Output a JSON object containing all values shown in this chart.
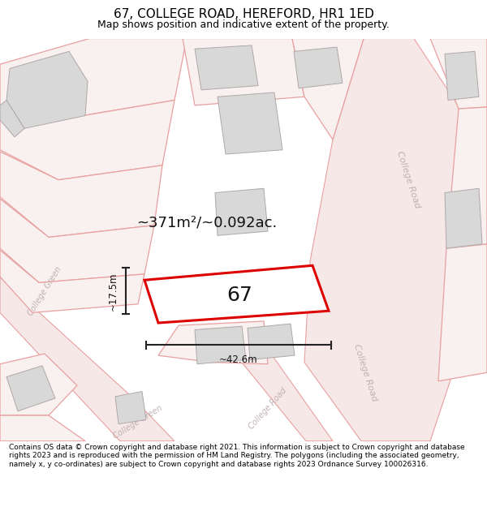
{
  "title": "67, COLLEGE ROAD, HEREFORD, HR1 1ED",
  "subtitle": "Map shows position and indicative extent of the property.",
  "footer": "Contains OS data © Crown copyright and database right 2021. This information is subject to Crown copyright and database rights 2023 and is reproduced with the permission of HM Land Registry. The polygons (including the associated geometry, namely x, y co-ordinates) are subject to Crown copyright and database rights 2023 Ordnance Survey 100026316.",
  "area_label": "~371m²/~0.092ac.",
  "width_label": "~42.6m",
  "height_label": "~17.5m",
  "plot_number": "67",
  "bg_color": "#ffffff",
  "map_bg": "#ffffff",
  "road_fill": "#f7e8e8",
  "road_edge": "#e8a0a0",
  "parcel_fill": "#f9f0f0",
  "parcel_edge": "#e8a0a0",
  "building_fill": "#d8d8d8",
  "building_edge": "#b0a8a8",
  "plot_fill": "#ffffff",
  "plot_edge": "#dd0000",
  "dim_color": "#222222",
  "road_label_color": "#c0b0b0",
  "title_fontsize": 11,
  "subtitle_fontsize": 9,
  "footer_fontsize": 6.5,
  "area_fontsize": 13,
  "plot_num_fontsize": 18,
  "dim_fontsize": 8.5,
  "road_label_fontsize": 8
}
